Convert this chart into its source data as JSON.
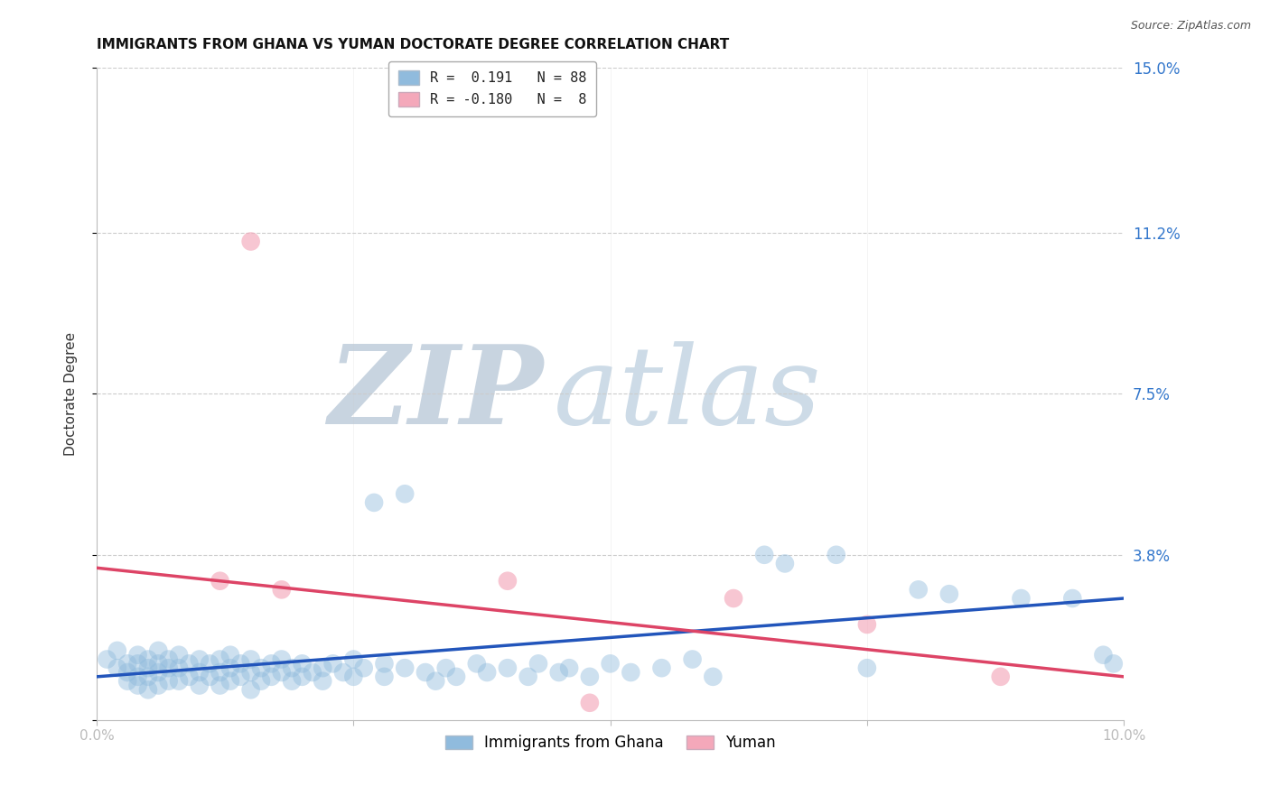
{
  "title": "IMMIGRANTS FROM GHANA VS YUMAN DOCTORATE DEGREE CORRELATION CHART",
  "source": "Source: ZipAtlas.com",
  "ylabel": "Doctorate Degree",
  "xlim": [
    0.0,
    0.1
  ],
  "ylim": [
    0.0,
    0.15
  ],
  "blue_color": "#90bbdd",
  "pink_color": "#f4a8ba",
  "blue_line_color": "#2255bb",
  "pink_line_color": "#dd4466",
  "grid_color": "#cccccc",
  "blue_line_x": [
    0.0,
    0.1
  ],
  "blue_line_y": [
    0.01,
    0.028
  ],
  "pink_line_x": [
    0.0,
    0.1
  ],
  "pink_line_y": [
    0.035,
    0.01
  ],
  "blue_scatter": [
    [
      0.001,
      0.014
    ],
    [
      0.002,
      0.012
    ],
    [
      0.002,
      0.016
    ],
    [
      0.003,
      0.013
    ],
    [
      0.003,
      0.011
    ],
    [
      0.003,
      0.009
    ],
    [
      0.004,
      0.015
    ],
    [
      0.004,
      0.013
    ],
    [
      0.004,
      0.01
    ],
    [
      0.004,
      0.008
    ],
    [
      0.005,
      0.014
    ],
    [
      0.005,
      0.012
    ],
    [
      0.005,
      0.01
    ],
    [
      0.005,
      0.007
    ],
    [
      0.006,
      0.016
    ],
    [
      0.006,
      0.013
    ],
    [
      0.006,
      0.011
    ],
    [
      0.006,
      0.008
    ],
    [
      0.007,
      0.014
    ],
    [
      0.007,
      0.012
    ],
    [
      0.007,
      0.009
    ],
    [
      0.008,
      0.015
    ],
    [
      0.008,
      0.012
    ],
    [
      0.008,
      0.009
    ],
    [
      0.009,
      0.013
    ],
    [
      0.009,
      0.01
    ],
    [
      0.01,
      0.014
    ],
    [
      0.01,
      0.011
    ],
    [
      0.01,
      0.008
    ],
    [
      0.011,
      0.013
    ],
    [
      0.011,
      0.01
    ],
    [
      0.012,
      0.014
    ],
    [
      0.012,
      0.011
    ],
    [
      0.012,
      0.008
    ],
    [
      0.013,
      0.015
    ],
    [
      0.013,
      0.012
    ],
    [
      0.013,
      0.009
    ],
    [
      0.014,
      0.013
    ],
    [
      0.014,
      0.01
    ],
    [
      0.015,
      0.014
    ],
    [
      0.015,
      0.011
    ],
    [
      0.015,
      0.007
    ],
    [
      0.016,
      0.012
    ],
    [
      0.016,
      0.009
    ],
    [
      0.017,
      0.013
    ],
    [
      0.017,
      0.01
    ],
    [
      0.018,
      0.014
    ],
    [
      0.018,
      0.011
    ],
    [
      0.019,
      0.012
    ],
    [
      0.019,
      0.009
    ],
    [
      0.02,
      0.013
    ],
    [
      0.02,
      0.01
    ],
    [
      0.021,
      0.011
    ],
    [
      0.022,
      0.012
    ],
    [
      0.022,
      0.009
    ],
    [
      0.023,
      0.013
    ],
    [
      0.024,
      0.011
    ],
    [
      0.025,
      0.014
    ],
    [
      0.025,
      0.01
    ],
    [
      0.026,
      0.012
    ],
    [
      0.027,
      0.05
    ],
    [
      0.028,
      0.013
    ],
    [
      0.028,
      0.01
    ],
    [
      0.03,
      0.052
    ],
    [
      0.03,
      0.012
    ],
    [
      0.032,
      0.011
    ],
    [
      0.033,
      0.009
    ],
    [
      0.034,
      0.012
    ],
    [
      0.035,
      0.01
    ],
    [
      0.037,
      0.013
    ],
    [
      0.038,
      0.011
    ],
    [
      0.04,
      0.012
    ],
    [
      0.042,
      0.01
    ],
    [
      0.043,
      0.013
    ],
    [
      0.045,
      0.011
    ],
    [
      0.046,
      0.012
    ],
    [
      0.048,
      0.01
    ],
    [
      0.05,
      0.013
    ],
    [
      0.052,
      0.011
    ],
    [
      0.055,
      0.012
    ],
    [
      0.058,
      0.014
    ],
    [
      0.06,
      0.01
    ],
    [
      0.065,
      0.038
    ],
    [
      0.067,
      0.036
    ],
    [
      0.072,
      0.038
    ],
    [
      0.075,
      0.012
    ],
    [
      0.08,
      0.03
    ],
    [
      0.083,
      0.029
    ],
    [
      0.09,
      0.028
    ],
    [
      0.095,
      0.028
    ],
    [
      0.098,
      0.015
    ],
    [
      0.099,
      0.013
    ]
  ],
  "pink_scatter": [
    [
      0.015,
      0.11
    ],
    [
      0.012,
      0.032
    ],
    [
      0.018,
      0.03
    ],
    [
      0.04,
      0.032
    ],
    [
      0.048,
      0.004
    ],
    [
      0.062,
      0.028
    ],
    [
      0.075,
      0.022
    ],
    [
      0.088,
      0.01
    ]
  ]
}
